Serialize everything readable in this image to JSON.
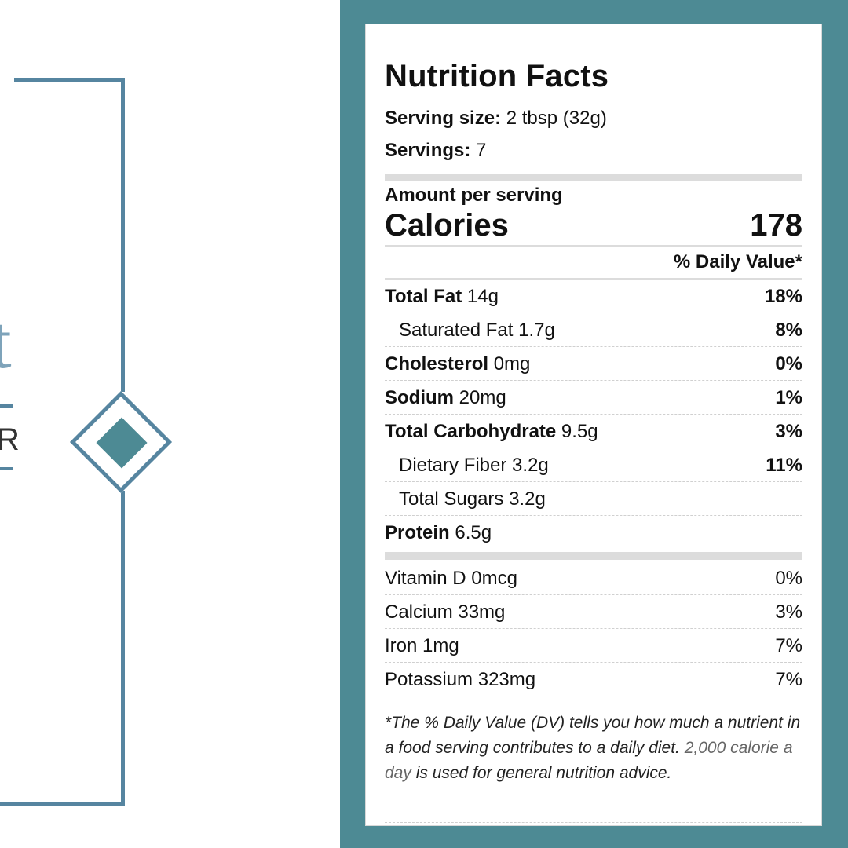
{
  "decor": {
    "title_fragment": "t",
    "subtitle_fragment": "R",
    "frame_color": "#5685a0",
    "accent_color": "#4d8a94"
  },
  "nutrition": {
    "title": "Nutrition Facts",
    "serving_size_label": "Serving size:",
    "serving_size_value": "2 tbsp (32g)",
    "servings_label": "Servings:",
    "servings_value": "7",
    "amount_per_serving": "Amount per serving",
    "calories_label": "Calories",
    "calories_value": "178",
    "daily_value_header": "% Daily Value*",
    "nutrients": [
      {
        "label": "Total Fat",
        "amount": "14g",
        "dv": "18%"
      },
      {
        "label": "Saturated Fat",
        "amount": "1.7g",
        "dv": "8%"
      },
      {
        "label": "Cholesterol",
        "amount": "0mg",
        "dv": "0%"
      },
      {
        "label": "Sodium",
        "amount": "20mg",
        "dv": "1%"
      },
      {
        "label": "Total Carbohydrate",
        "amount": "9.5g",
        "dv": "3%"
      },
      {
        "label": "Dietary Fiber",
        "amount": "3.2g",
        "dv": "11%"
      },
      {
        "label": "Total Sugars",
        "amount": "3.2g",
        "dv": ""
      },
      {
        "label": "Protein",
        "amount": "6.5g",
        "dv": ""
      }
    ],
    "vitamins": [
      {
        "label": "Vitamin D",
        "amount": "0mcg",
        "dv": "0%"
      },
      {
        "label": "Calcium",
        "amount": "33mg",
        "dv": "3%"
      },
      {
        "label": "Iron",
        "amount": "1mg",
        "dv": "7%"
      },
      {
        "label": "Potassium",
        "amount": "323mg",
        "dv": "7%"
      }
    ],
    "footnote_part1": "*The % Daily Value (DV) tells you how much a nutrient in a food serving contributes to a daily diet.",
    "footnote_highlight": "2,000 calorie a day",
    "footnote_part2": "is used for general nutrition advice."
  }
}
